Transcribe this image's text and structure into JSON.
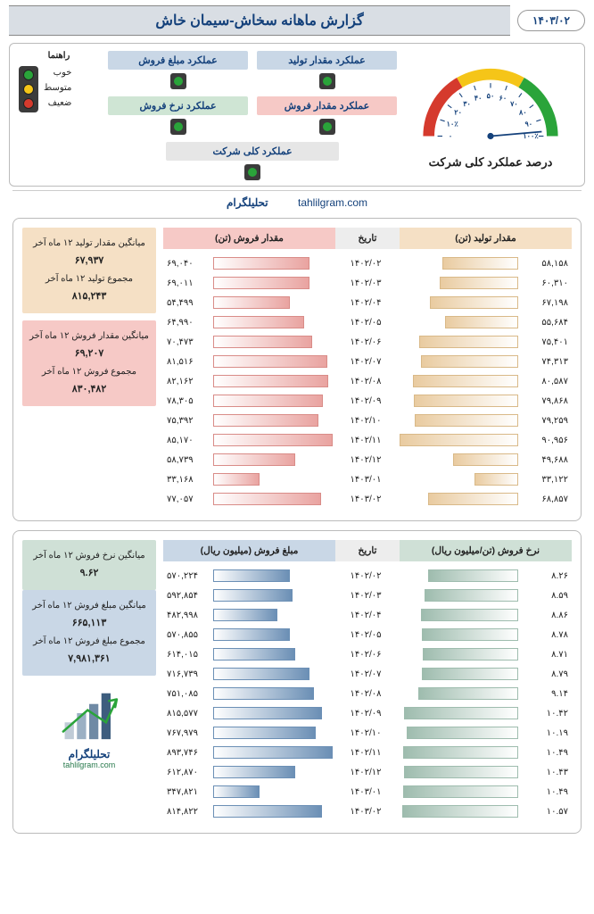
{
  "header": {
    "date": "۱۴۰۳/۰۲",
    "title": "گزارش ماهانه سخاش-سیمان خاش"
  },
  "legend": {
    "title": "راهنما",
    "items": [
      {
        "label": "خوب",
        "color": "#2aa43a"
      },
      {
        "label": "متوسط",
        "color": "#f5c518"
      },
      {
        "label": "ضعیف",
        "color": "#d53a2d"
      }
    ]
  },
  "kpis": [
    {
      "label": "عملکرد مقدار تولید",
      "bg": "#c9d7e6",
      "status_color": "#2aa43a"
    },
    {
      "label": "عملکرد مبلغ فروش",
      "bg": "#c9d7e6",
      "status_color": "#2aa43a"
    },
    {
      "label": "عملکرد مقدار فروش",
      "bg": "#f6c9c6",
      "status_color": "#2aa43a"
    },
    {
      "label": "عملکرد نرخ فروش",
      "bg": "#cfe5d4",
      "status_color": "#2aa43a"
    }
  ],
  "kpi_overall": {
    "label": "عملکرد کلی شرکت",
    "bg": "#e6e6e6",
    "status_color": "#2aa43a"
  },
  "gauge": {
    "title": "درصد عملکرد کلی شرکت",
    "ticks": [
      "۰",
      "۱۰٪",
      "۲۰",
      "۳۰",
      "۴۰",
      "۵۰",
      "۶۰",
      "۷۰",
      "۸۰",
      "۹۰",
      "۱۰۰٪"
    ],
    "segments": [
      {
        "color": "#d53a2d"
      },
      {
        "color": "#f5c518"
      },
      {
        "color": "#2aa43a"
      }
    ],
    "needle_color": "#14417b",
    "tick_color": "#14417b",
    "label_color": "#14417b",
    "value_angle_deg": 175
  },
  "site": {
    "fa": "تحلیلگرام",
    "en": "tahlilgram.com"
  },
  "panel1": {
    "col_a_head": "مقدار فروش (تن)",
    "col_b_head": "مقدار تولید (تن)",
    "date_head": "تاریخ",
    "a_head_bg": "#f6c9c6",
    "b_head_bg": "#f5e0c5",
    "bar_a_fill": "linear-gradient(to left,#e9a3a0,#fff)",
    "bar_a_border": "#d98c88",
    "bar_b_fill": "linear-gradient(to right,#e9cba0,#fff)",
    "bar_b_border": "#d9b988",
    "max_a": 86000,
    "max_b": 92000,
    "rows": [
      {
        "date": "۱۴۰۲/۰۲",
        "a_txt": "۶۹,۰۴۰",
        "a": 69040,
        "b_txt": "۵۸,۱۵۸",
        "b": 58158
      },
      {
        "date": "۱۴۰۲/۰۳",
        "a_txt": "۶۹,۰۱۱",
        "a": 69011,
        "b_txt": "۶۰,۳۱۰",
        "b": 60310
      },
      {
        "date": "۱۴۰۲/۰۴",
        "a_txt": "۵۴,۴۹۹",
        "a": 54499,
        "b_txt": "۶۷,۱۹۸",
        "b": 67198
      },
      {
        "date": "۱۴۰۲/۰۵",
        "a_txt": "۶۴,۹۹۰",
        "a": 64990,
        "b_txt": "۵۵,۶۸۴",
        "b": 55684
      },
      {
        "date": "۱۴۰۲/۰۶",
        "a_txt": "۷۰,۴۷۳",
        "a": 70473,
        "b_txt": "۷۵,۴۰۱",
        "b": 75401
      },
      {
        "date": "۱۴۰۲/۰۷",
        "a_txt": "۸۱,۵۱۶",
        "a": 81516,
        "b_txt": "۷۴,۳۱۳",
        "b": 74313
      },
      {
        "date": "۱۴۰۲/۰۸",
        "a_txt": "۸۲,۱۶۲",
        "a": 82162,
        "b_txt": "۸۰,۵۸۷",
        "b": 80587
      },
      {
        "date": "۱۴۰۲/۰۹",
        "a_txt": "۷۸,۳۰۵",
        "a": 78305,
        "b_txt": "۷۹,۸۶۸",
        "b": 79868
      },
      {
        "date": "۱۴۰۲/۱۰",
        "a_txt": "۷۵,۳۹۲",
        "a": 75392,
        "b_txt": "۷۹,۲۵۹",
        "b": 79259
      },
      {
        "date": "۱۴۰۲/۱۱",
        "a_txt": "۸۵,۱۷۰",
        "a": 85170,
        "b_txt": "۹۰,۹۵۶",
        "b": 90956
      },
      {
        "date": "۱۴۰۲/۱۲",
        "a_txt": "۵۸,۷۳۹",
        "a": 58739,
        "b_txt": "۴۹,۶۸۸",
        "b": 49688
      },
      {
        "date": "۱۴۰۳/۰۱",
        "a_txt": "۳۳,۱۶۸",
        "a": 33168,
        "b_txt": "۳۳,۱۲۲",
        "b": 33122
      },
      {
        "date": "۱۴۰۳/۰۲",
        "a_txt": "۷۷,۰۵۷",
        "a": 77057,
        "b_txt": "۶۸,۸۵۷",
        "b": 68857
      }
    ],
    "stats": [
      {
        "bg": "#f5e0c5",
        "lines": [
          {
            "t": "میانگین مقدار تولید ۱۲ ماه آخر",
            "v": "۶۷,۹۳۷"
          },
          {
            "t": "مجموع تولید ۱۲ ماه آخر",
            "v": "۸۱۵,۲۴۳"
          }
        ]
      },
      {
        "bg": "#f6c9c6",
        "lines": [
          {
            "t": "میانگین مقدار فروش ۱۲ ماه آخر",
            "v": "۶۹,۲۰۷"
          },
          {
            "t": "مجموع فروش ۱۲ ماه آخر",
            "v": "۸۳۰,۴۸۲"
          }
        ]
      }
    ]
  },
  "panel2": {
    "col_a_head": "مبلغ فروش (میلیون ریال)",
    "col_b_head": "نرخ فروش (تن/میلیون ریال)",
    "date_head": "تاریخ",
    "a_head_bg": "#c9d7e6",
    "b_head_bg": "#cfe0d6",
    "bar_a_fill": "linear-gradient(to left,#6b8fb5,#fff)",
    "bar_a_border": "#6b8fb5",
    "bar_b_fill": "linear-gradient(to right,#9ebcae,#fff)",
    "bar_b_border": "#9ebcae",
    "max_a": 900000,
    "max_b": 11,
    "rows": [
      {
        "date": "۱۴۰۲/۰۲",
        "a_txt": "۵۷۰,۲۲۴",
        "a": 570224,
        "b_txt": "۸.۲۶",
        "b": 8.26
      },
      {
        "date": "۱۴۰۲/۰۳",
        "a_txt": "۵۹۲,۸۵۴",
        "a": 592854,
        "b_txt": "۸.۵۹",
        "b": 8.59
      },
      {
        "date": "۱۴۰۲/۰۴",
        "a_txt": "۴۸۲,۹۹۸",
        "a": 482998,
        "b_txt": "۸.۸۶",
        "b": 8.86
      },
      {
        "date": "۱۴۰۲/۰۵",
        "a_txt": "۵۷۰,۸۵۵",
        "a": 570855,
        "b_txt": "۸.۷۸",
        "b": 8.78
      },
      {
        "date": "۱۴۰۲/۰۶",
        "a_txt": "۶۱۴,۰۱۵",
        "a": 614015,
        "b_txt": "۸.۷۱",
        "b": 8.71
      },
      {
        "date": "۱۴۰۲/۰۷",
        "a_txt": "۷۱۶,۷۳۹",
        "a": 716739,
        "b_txt": "۸.۷۹",
        "b": 8.79
      },
      {
        "date": "۱۴۰۲/۰۸",
        "a_txt": "۷۵۱,۰۸۵",
        "a": 751085,
        "b_txt": "۹.۱۴",
        "b": 9.14
      },
      {
        "date": "۱۴۰۲/۰۹",
        "a_txt": "۸۱۵,۵۷۷",
        "a": 815577,
        "b_txt": "۱۰.۴۲",
        "b": 10.42
      },
      {
        "date": "۱۴۰۲/۱۰",
        "a_txt": "۷۶۷,۹۷۹",
        "a": 767979,
        "b_txt": "۱۰.۱۹",
        "b": 10.19
      },
      {
        "date": "۱۴۰۲/۱۱",
        "a_txt": "۸۹۳,۷۴۶",
        "a": 893746,
        "b_txt": "۱۰.۴۹",
        "b": 10.49
      },
      {
        "date": "۱۴۰۲/۱۲",
        "a_txt": "۶۱۲,۸۷۰",
        "a": 612870,
        "b_txt": "۱۰.۴۳",
        "b": 10.43
      },
      {
        "date": "۱۴۰۳/۰۱",
        "a_txt": "۳۴۷,۸۲۱",
        "a": 347821,
        "b_txt": "۱۰.۴۹",
        "b": 10.49
      },
      {
        "date": "۱۴۰۳/۰۲",
        "a_txt": "۸۱۴,۸۲۲",
        "a": 814822,
        "b_txt": "۱۰.۵۷",
        "b": 10.57
      }
    ],
    "stats": [
      {
        "bg": "#cfe0d6",
        "lines": [
          {
            "t": "میانگین نرخ فروش ۱۲ ماه آخر",
            "v": "۹.۶۲"
          }
        ]
      },
      {
        "bg": "#c9d7e6",
        "lines": [
          {
            "t": "میانگین مبلغ فروش ۱۲ ماه آخر",
            "v": "۶۶۵,۱۱۳"
          },
          {
            "t": "مجموع مبلغ فروش ۱۲ ماه آخر",
            "v": "۷,۹۸۱,۳۶۱"
          }
        ]
      }
    ],
    "logo": {
      "name": "تحلیلگرام",
      "site": "tahlilgram.com",
      "bar_colors": [
        "#bfcbd6",
        "#9bb0c4",
        "#6f8aa5",
        "#3d5d7e"
      ],
      "arrow_color": "#2aa43a"
    }
  }
}
